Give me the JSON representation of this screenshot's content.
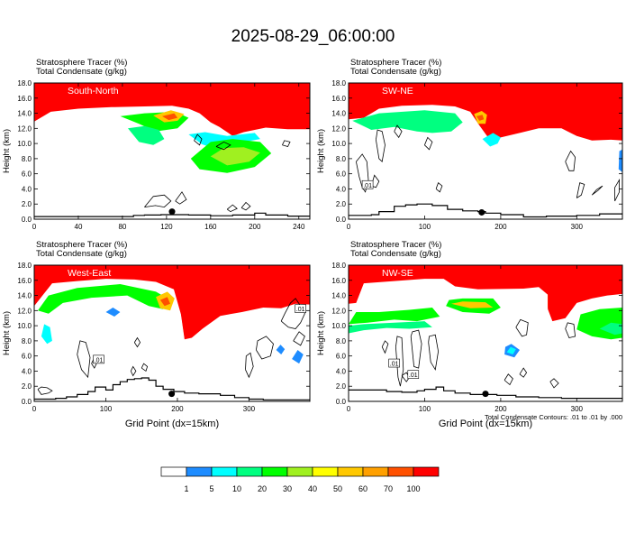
{
  "title": "2025-08-29_06:00:00",
  "footnote": "Total Condensate Contours: .01 to .01 by .000",
  "colorbar": {
    "labels": [
      "1",
      "5",
      "10",
      "20",
      "30",
      "40",
      "50",
      "60",
      "70",
      "100"
    ],
    "colors": [
      "#ffffff",
      "#1e8cff",
      "#00ffff",
      "#00ff80",
      "#00ff00",
      "#a0f020",
      "#ffff00",
      "#ffc800",
      "#ffa000",
      "#ff5000",
      "#ff0000"
    ]
  },
  "chart_data": [
    {
      "type": "heatmap",
      "header_line1": "Stratosphere Tracer   (%)",
      "header_line2": "Total Condensate   (g/kg)",
      "panel_label": "South-North",
      "ylabel": "Height (km)",
      "xlabel": "",
      "xlim": [
        0,
        250
      ],
      "xticks": [
        0,
        40,
        80,
        120,
        160,
        200,
        240
      ],
      "ylim": [
        0,
        18
      ],
      "yticks": [
        "0.0",
        "2.0",
        "4.0",
        "6.0",
        "8.0",
        "10.0",
        "12.0",
        "14.0",
        "16.0",
        "18.0"
      ],
      "contour_label": "",
      "marker": {
        "x": 125,
        "y": 1.0
      }
    },
    {
      "type": "heatmap",
      "header_line1": "Stratosphere Tracer   (%)",
      "header_line2": "Total Condensate   (g/kg)",
      "panel_label": "SW-NE",
      "ylabel": "Height (km)",
      "xlabel": "",
      "xlim": [
        0,
        360
      ],
      "xticks": [
        0,
        100,
        200,
        300
      ],
      "ylim": [
        0,
        18
      ],
      "yticks": [
        "0.0",
        "2.0",
        "4.0",
        "6.0",
        "8.0",
        "10.0",
        "12.0",
        "14.0",
        "16.0",
        "18.0"
      ],
      "contour_label": ".01",
      "marker": {
        "x": 175,
        "y": 0.9
      }
    },
    {
      "type": "heatmap",
      "header_line1": "Stratosphere Tracer   (%)",
      "header_line2": "Total Condensate   (g/kg)",
      "panel_label": "West-East",
      "ylabel": "Height (km)",
      "xlabel": "Grid Point (dx=15km)",
      "xlim": [
        0,
        385
      ],
      "xticks": [
        0,
        100,
        200,
        300
      ],
      "ylim": [
        0,
        18
      ],
      "yticks": [
        "0.0",
        "2.0",
        "4.0",
        "6.0",
        "8.0",
        "10.0",
        "12.0",
        "14.0",
        "16.0",
        "18.0"
      ],
      "contour_label": ".01",
      "marker": {
        "x": 192,
        "y": 1.0
      }
    },
    {
      "type": "heatmap",
      "header_line1": "Stratosphere Tracer   (%)",
      "header_line2": "Total Condensate   (g/kg)",
      "panel_label": "NW-SE",
      "ylabel": "Height (km)",
      "xlabel": "Grid Point (dx=15km)",
      "xlim": [
        0,
        360
      ],
      "xticks": [
        0,
        100,
        200,
        300
      ],
      "ylim": [
        0,
        18
      ],
      "yticks": [
        "0.0",
        "2.0",
        "4.0",
        "6.0",
        "8.0",
        "10.0",
        "12.0",
        "14.0",
        "16.0",
        "18.0"
      ],
      "contour_label": ".01",
      "marker": {
        "x": 180,
        "y": 1.0
      }
    }
  ]
}
